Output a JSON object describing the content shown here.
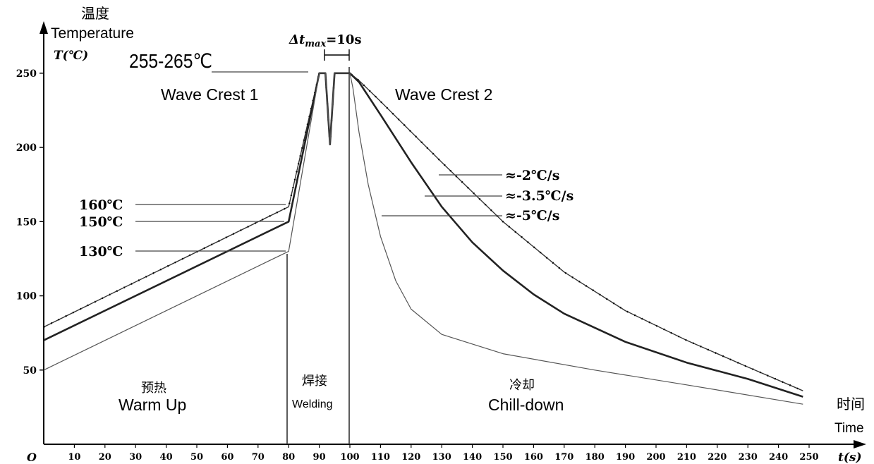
{
  "chart_data": {
    "type": "line",
    "title": "",
    "y_axis": {
      "label_cn": "温度",
      "label_en": "Temperature",
      "label_symbol": "T(℃)",
      "ticks": [
        50,
        100,
        150,
        200,
        250
      ],
      "range": [
        0,
        260
      ]
    },
    "x_axis": {
      "label_cn": "时间",
      "label_en": "Time",
      "label_symbol": "t(s)",
      "origin_label": "O",
      "ticks": [
        10,
        20,
        30,
        40,
        50,
        60,
        70,
        80,
        90,
        100,
        110,
        120,
        130,
        140,
        150,
        160,
        170,
        180,
        190,
        200,
        210,
        220,
        230,
        240,
        250
      ],
      "range": [
        0,
        255
      ]
    },
    "series": [
      {
        "name": "≈-2℃/s",
        "points": [
          [
            0,
            79
          ],
          [
            80,
            160
          ],
          [
            90,
            250
          ],
          [
            92,
            250
          ],
          [
            93.5,
            202
          ],
          [
            95,
            250
          ],
          [
            100,
            250
          ],
          [
            103,
            245
          ],
          [
            110,
            231
          ],
          [
            130,
            190
          ],
          [
            150,
            150
          ],
          [
            170,
            116
          ],
          [
            190,
            90
          ],
          [
            210,
            70
          ],
          [
            230,
            52
          ],
          [
            248,
            36
          ]
        ]
      },
      {
        "name": "≈-3.5℃/s",
        "points": [
          [
            0,
            70
          ],
          [
            80,
            150
          ],
          [
            90,
            250
          ],
          [
            92,
            250
          ],
          [
            93.5,
            202
          ],
          [
            95,
            250
          ],
          [
            100,
            250
          ],
          [
            103,
            244
          ],
          [
            110,
            222
          ],
          [
            120,
            190
          ],
          [
            130,
            160
          ],
          [
            140,
            136
          ],
          [
            150,
            117
          ],
          [
            160,
            101
          ],
          [
            170,
            88
          ],
          [
            190,
            69
          ],
          [
            210,
            55
          ],
          [
            230,
            44
          ],
          [
            248,
            32
          ]
        ]
      },
      {
        "name": "≈-5℃/s",
        "points": [
          [
            0,
            50
          ],
          [
            80,
            130
          ],
          [
            90,
            250
          ],
          [
            92,
            250
          ],
          [
            93.5,
            202
          ],
          [
            95,
            250
          ],
          [
            100,
            250
          ],
          [
            101,
            240
          ],
          [
            103,
            210
          ],
          [
            106,
            175
          ],
          [
            110,
            140
          ],
          [
            115,
            110
          ],
          [
            120,
            91
          ],
          [
            130,
            74
          ],
          [
            150,
            61
          ],
          [
            180,
            50
          ],
          [
            210,
            40
          ],
          [
            248,
            27
          ]
        ]
      }
    ],
    "annotations": {
      "peak_range": "255-265℃",
      "delta_t_prefix": "Δt",
      "delta_t_sub": "max",
      "delta_t_value": "=10s",
      "crest1": "Wave Crest 1",
      "crest2": "Wave Crest 2",
      "preheat_labels": [
        "160℃",
        "150℃",
        "130℃"
      ],
      "phases": {
        "warm_cn": "预热",
        "warm_en": "Warm Up",
        "weld_cn": "焊接",
        "weld_en": "Welding",
        "chill_cn": "冷却",
        "chill_en": "Chill-down"
      }
    },
    "grid": false,
    "legend": "inline-right"
  }
}
